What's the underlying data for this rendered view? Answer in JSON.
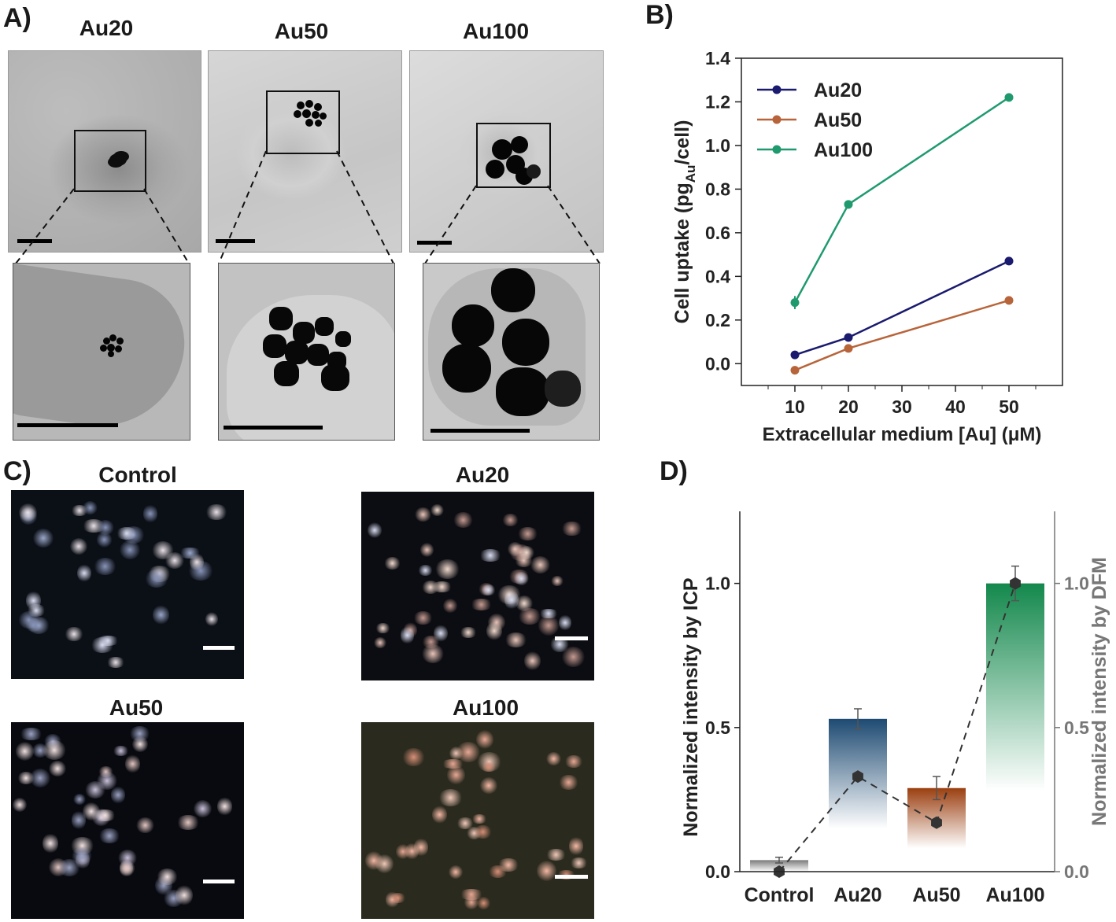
{
  "panels": {
    "A": {
      "letter": "A)",
      "titles": [
        "Au20",
        "Au50",
        "Au100"
      ]
    },
    "B": {
      "letter": "B)"
    },
    "C": {
      "letter": "C)",
      "titles": [
        "Control",
        "Au20",
        "Au50",
        "Au100"
      ]
    },
    "D": {
      "letter": "D)"
    }
  },
  "chart_data": [
    {
      "type": "line",
      "panel": "B",
      "xlabel": "Extracellular medium [Au] (μM)",
      "ylabel": "Cell uptake (pgAu/cell)",
      "ylabel_parts": {
        "pre": "Cell uptake (pg",
        "sub": "Au",
        "post": "/cell)"
      },
      "x": [
        10,
        20,
        50
      ],
      "xticks": [
        "10",
        "20",
        "30",
        "40",
        "50"
      ],
      "xlim": [
        0,
        60
      ],
      "ylim": [
        -0.1,
        1.4
      ],
      "yticks": [
        "0.0",
        "0.2",
        "0.4",
        "0.6",
        "0.8",
        "1.0",
        "1.2",
        "1.4"
      ],
      "legend_position": "top-left",
      "series": [
        {
          "name": "Au20",
          "color": "#1a1a6e",
          "values": [
            0.04,
            0.12,
            0.47
          ],
          "errors": [
            0.005,
            0.005,
            0.005
          ]
        },
        {
          "name": "Au50",
          "color": "#b8643a",
          "values": [
            -0.03,
            0.07,
            0.29
          ],
          "errors": [
            0.005,
            0.01,
            0.005
          ]
        },
        {
          "name": "Au100",
          "color": "#1f9a6e",
          "values": [
            0.28,
            0.73,
            1.22
          ],
          "errors": [
            0.03,
            0.015,
            0.01
          ]
        }
      ]
    },
    {
      "type": "bar",
      "panel": "D",
      "categories": [
        "Control",
        "Au20",
        "Au50",
        "Au100"
      ],
      "ylabel": "Normalized intensity by ICP",
      "y2label": "Normalized intensity by DFM",
      "ylim": [
        0,
        1.25
      ],
      "yticks": [
        "0.0",
        "0.5",
        "1.0"
      ],
      "y2ticks": [
        "0.0",
        "0.5",
        "1.0"
      ],
      "series": [
        {
          "name": "ICP",
          "values": [
            0.04,
            0.53,
            0.29,
            1.0
          ],
          "errors": [
            0.01,
            0.035,
            0.04,
            0.0
          ],
          "colors": [
            "#7a7a7a",
            "#1d4a72",
            "#9a3f10",
            "#13884c"
          ]
        },
        {
          "name": "DFM",
          "values": [
            0.0,
            0.33,
            0.17,
            1.0
          ],
          "errors": [
            0.0,
            0.0,
            0.0,
            0.06
          ],
          "color": "#333333",
          "line": "dashed"
        }
      ]
    }
  ]
}
